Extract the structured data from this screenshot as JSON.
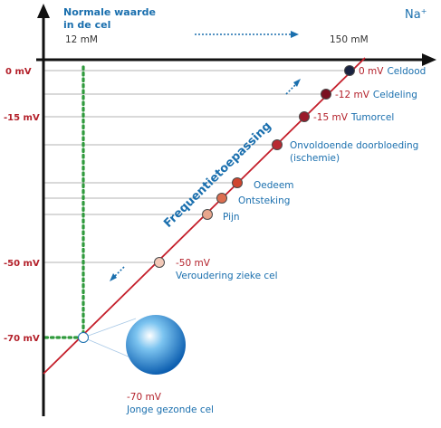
{
  "header": {
    "normal_line1": "Normale waarde",
    "normal_line2": "in de cel",
    "normal_value": "12 mM",
    "outside_value": "150 mM",
    "ion": "Na",
    "ion_sup": "+"
  },
  "axis_labels": [
    {
      "id": "0",
      "text": "0 mV"
    },
    {
      "id": "15",
      "text": "-15 mV"
    },
    {
      "id": "50",
      "text": "-50 mV"
    },
    {
      "id": "70",
      "text": "-70 mV"
    }
  ],
  "diagonal_caption": "Frequentietoepassing",
  "points": [
    {
      "mv": "0 mV",
      "label": "Celdood",
      "color": "#1a2340"
    },
    {
      "mv": "-12 mV",
      "label": "Celdeling",
      "color": "#7a1020"
    },
    {
      "mv": "-15 mV",
      "label": "Tumorcel",
      "color": "#9a1a2a"
    },
    {
      "mv": "",
      "label": "Onvoldoende doorbloeding",
      "label2": "(ischemie)",
      "color": "#b82a32"
    },
    {
      "mv": "",
      "label": "Oedeem",
      "color": "#d0452e"
    },
    {
      "mv": "",
      "label": "Ontsteking",
      "color": "#dc6e50"
    },
    {
      "mv": "",
      "label": "Pijn",
      "color": "#e8a68c"
    },
    {
      "mv": "-50 mV",
      "label": "Veroudering zieke cel",
      "color": "#f2c9b8"
    },
    {
      "mv": "-70 mV",
      "label": "Jonge gezonde cel",
      "color": "#ffffff"
    }
  ],
  "colors": {
    "axis": "#111111",
    "diagonal": "#c41e2a",
    "blue": "#1a6fae",
    "red": "#b3202a",
    "green_dots": "#2f9a3c",
    "grid": "#999999"
  }
}
